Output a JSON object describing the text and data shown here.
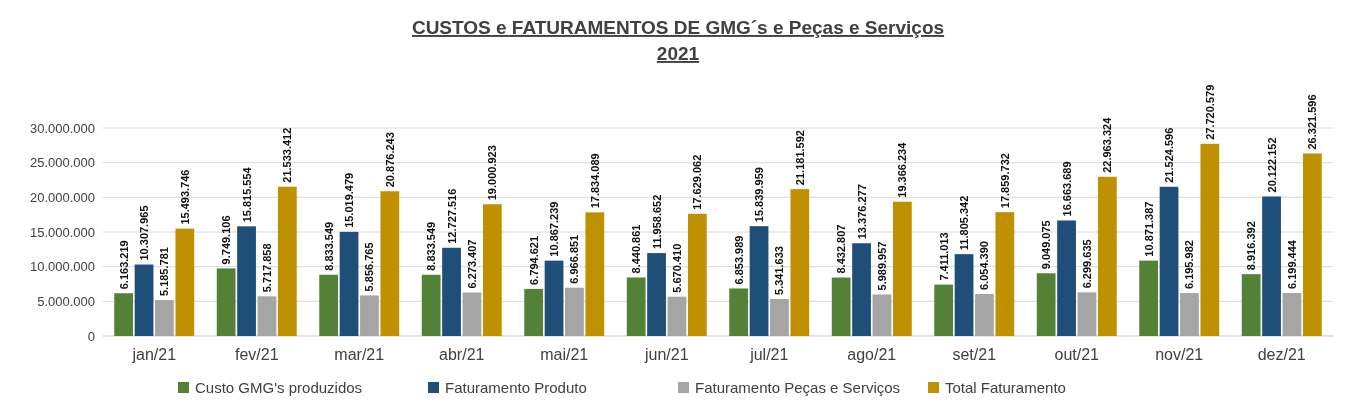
{
  "chart_data": {
    "type": "bar",
    "title": "CUSTOS e FATURAMENTOS DE GMG´s e Peças e Serviços",
    "subtitle": "2021",
    "categories": [
      "jan/21",
      "fev/21",
      "mar/21",
      "abr/21",
      "mai/21",
      "jun/21",
      "jul/21",
      "ago/21",
      "set/21",
      "out/21",
      "nov/21",
      "dez/21"
    ],
    "series": [
      {
        "name": "Custo GMG's produzidos",
        "color": "#538135",
        "values": [
          6163219,
          9749106,
          8833549,
          8833549,
          6794621,
          8440861,
          6853989,
          8432807,
          7411013,
          9049075,
          10871387,
          8916392
        ],
        "value_labels": [
          "6.163.219",
          "9.749.106",
          "8.833.549",
          "8.833.549",
          "6.794.621",
          "8.440.861",
          "6.853.989",
          "8.432.807",
          "7.411.013",
          "9.049.075",
          "10.871.387",
          "8.916.392"
        ]
      },
      {
        "name": "Faturamento Produto",
        "color": "#1f4e79",
        "values": [
          10307965,
          15815554,
          15019479,
          12727516,
          10867239,
          11958652,
          15839959,
          13376277,
          11805342,
          16663689,
          21524596,
          20122152
        ],
        "value_labels": [
          "10.307.965",
          "15.815.554",
          "15.019.479",
          "12.727.516",
          "10.867.239",
          "11.958.652",
          "15.839.959",
          "13.376.277",
          "11.805.342",
          "16.663.689",
          "21.524.596",
          "20.122.152"
        ]
      },
      {
        "name": "Faturamento Peças e Serviços",
        "color": "#a5a5a5",
        "values": [
          5185781,
          5717858,
          5856765,
          6273407,
          6966851,
          5670410,
          5341633,
          5989957,
          6054390,
          6299635,
          6195982,
          6199444
        ],
        "value_labels": [
          "5.185.781",
          "5.717.858",
          "5.856.765",
          "6.273.407",
          "6.966.851",
          "5.670.410",
          "5.341.633",
          "5.989.957",
          "6.054.390",
          "6.299.635",
          "6.195.982",
          "6.199.444"
        ]
      },
      {
        "name": "Total Faturamento",
        "color": "#bf9000",
        "values": [
          15493746,
          21533412,
          20876243,
          19000923,
          17834089,
          17629062,
          21181592,
          19366234,
          17859732,
          22963324,
          27720579,
          26321596
        ],
        "value_labels": [
          "15.493.746",
          "21.533.412",
          "20.876.243",
          "19.000.923",
          "17.834.089",
          "17.629.062",
          "21.181.592",
          "19.366.234",
          "17.859.732",
          "22.963.324",
          "27.720.579",
          "26.321.596"
        ]
      }
    ],
    "ylim": [
      0,
      30000000
    ],
    "yticks": [
      {
        "value": 0,
        "label": "0"
      },
      {
        "value": 5000000,
        "label": "5.000.000"
      },
      {
        "value": 10000000,
        "label": "10.000.000"
      },
      {
        "value": 15000000,
        "label": "15.000.000"
      },
      {
        "value": 20000000,
        "label": "20.000.000"
      },
      {
        "value": 25000000,
        "label": "25.000.000"
      },
      {
        "value": 30000000,
        "label": "30.000.000"
      }
    ],
    "grid": "y",
    "legend": "bottom"
  }
}
